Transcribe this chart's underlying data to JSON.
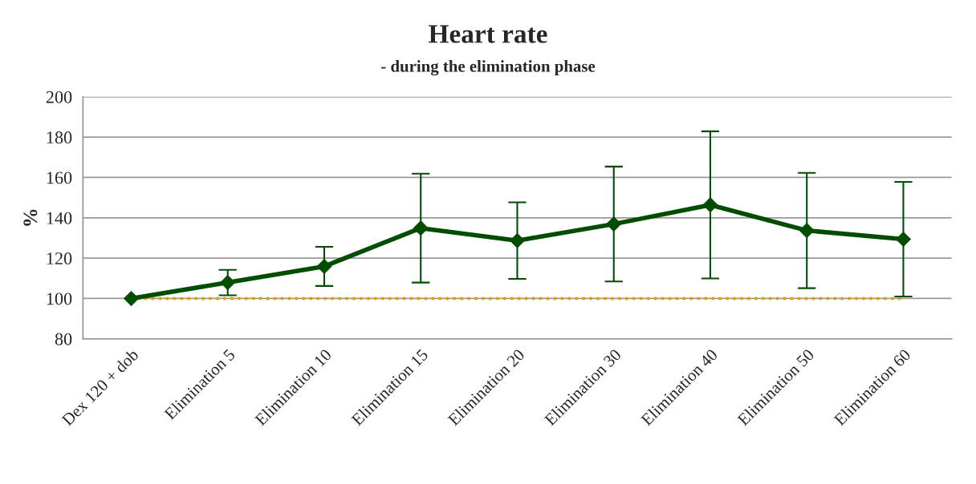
{
  "chart_data": {
    "type": "line",
    "title": "Heart rate",
    "subtitle": "- during the elimination phase",
    "ylabel": "%",
    "categories": [
      "Dex 120 + dob",
      "Elimination 5",
      "Elimination 10",
      "Elimination 15",
      "Elimination 20",
      "Elimination 30",
      "Elimination 40",
      "Elimination 50",
      "Elimination 60"
    ],
    "series": [
      {
        "color": "#e0a000",
        "values": [
          100,
          100,
          100,
          100,
          100,
          100,
          100,
          100,
          100
        ],
        "line_style": "dotted",
        "marker": "none"
      },
      {
        "color": "#004d00",
        "values": [
          100,
          107.9,
          115.9,
          134.9,
          128.7,
          136.9,
          146.4,
          133.7,
          129.4
        ],
        "errors": [
          null,
          6.3,
          9.7,
          27,
          19,
          28.5,
          36.5,
          28.6,
          28.4
        ],
        "line_style": "solid",
        "marker": "diamond"
      }
    ],
    "ylim": [
      80,
      200
    ],
    "yticks": [
      80,
      100,
      120,
      140,
      160,
      180,
      200
    ],
    "grid": "y",
    "legend": false
  }
}
